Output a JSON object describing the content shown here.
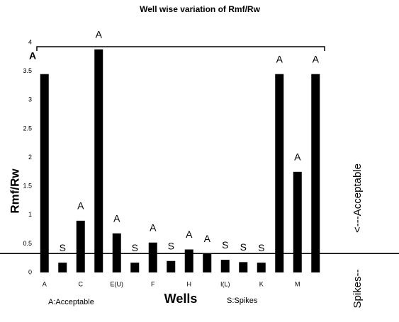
{
  "chart_data": {
    "type": "bar",
    "title": "Well wise variation of Rmf/Rw",
    "x_label": "Wells",
    "y_label": "Rmf/Rw",
    "categories": [
      "A",
      null,
      "C",
      null,
      "E(U)",
      null,
      "F",
      null,
      "H",
      null,
      "I(L)",
      null,
      "K",
      null,
      "M",
      null
    ],
    "values": [
      3.45,
      0.17,
      0.9,
      3.88,
      0.68,
      0.17,
      0.52,
      0.2,
      0.4,
      0.33,
      0.22,
      0.18,
      0.17,
      3.45,
      1.75,
      3.45
    ],
    "bar_labels": [
      "A",
      "S",
      "A",
      "A",
      "A",
      "S",
      "A",
      "S",
      "A",
      "A",
      "S",
      "S",
      "S",
      "A",
      "A",
      "A"
    ],
    "color": "#000000",
    "ylim": [
      0,
      4
    ],
    "yticks": [
      0,
      0.5,
      1,
      1.5,
      2,
      2.5,
      3,
      3.5,
      4
    ],
    "threshold_line": 0.33,
    "legend_notes": [
      "A:Acceptable",
      "S:Spikes"
    ],
    "side_labels": [
      "<---Acceptable",
      "Spikes--"
    ]
  }
}
